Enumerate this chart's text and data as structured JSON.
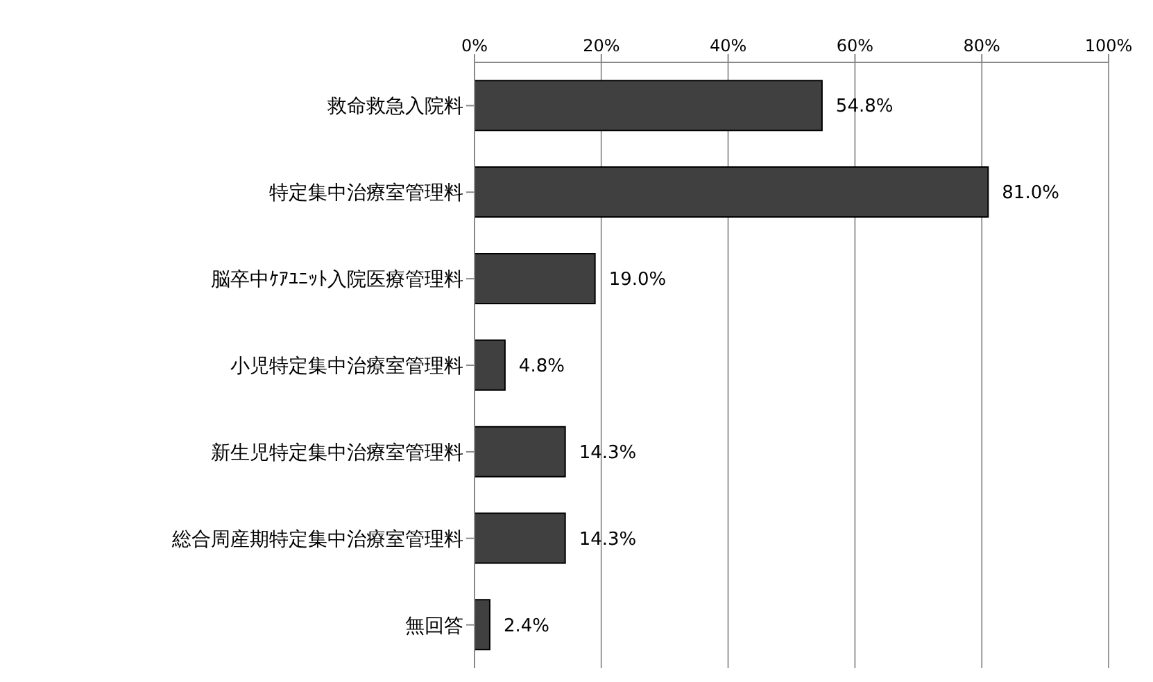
{
  "chart_data": {
    "type": "bar",
    "orientation": "horizontal",
    "categories": [
      "救命救急入院料",
      "特定集中治療室管理料",
      "脳卒中ｹｱﾕﾆｯﾄ入院医療管理料",
      "小児特定集中治療室管理料",
      "新生児特定集中治療室管理料",
      "総合周産期特定集中治療室管理料",
      "無回答"
    ],
    "values": [
      54.8,
      81.0,
      19.0,
      4.8,
      14.3,
      14.3,
      2.4
    ],
    "value_labels": [
      "54.8%",
      "81.0%",
      "19.0%",
      "4.8%",
      "14.3%",
      "14.3%",
      "2.4%"
    ],
    "color": "#404040",
    "xlim": [
      0,
      100
    ],
    "xticks": [
      {
        "value": 0,
        "label": "0%"
      },
      {
        "value": 20,
        "label": "20%"
      },
      {
        "value": 40,
        "label": "40%"
      },
      {
        "value": 60,
        "label": "60%"
      },
      {
        "value": 80,
        "label": "80%"
      },
      {
        "value": 100,
        "label": "100%"
      }
    ],
    "grid": "x"
  }
}
